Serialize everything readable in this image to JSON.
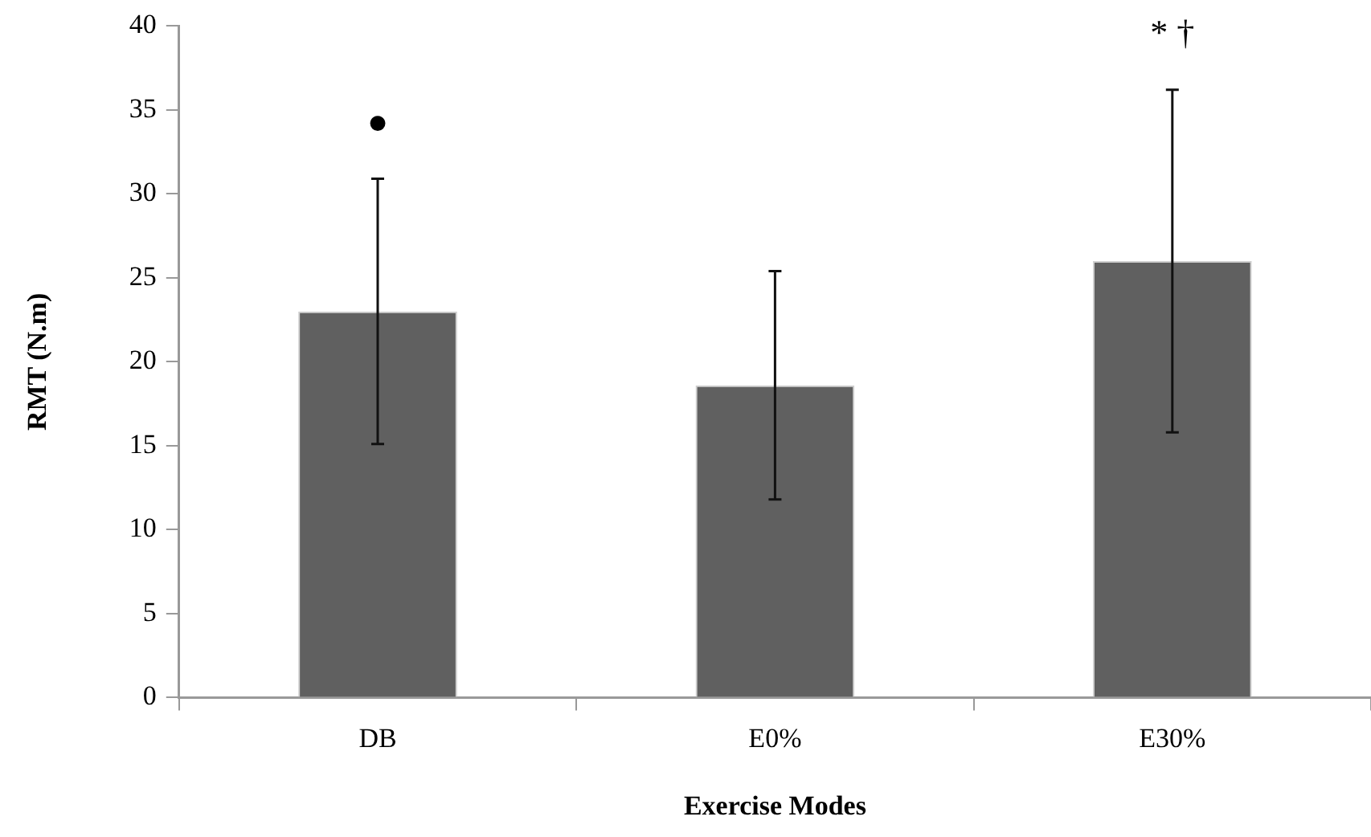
{
  "chart_data": {
    "type": "bar",
    "xlabel": "Exercise Modes",
    "ylabel": "RMT (N.m)",
    "categories": [
      "DB",
      "E0%",
      "E30%"
    ],
    "values": [
      23.0,
      18.6,
      26.0
    ],
    "errors": [
      7.9,
      6.8,
      10.2
    ],
    "color": "#606060",
    "ylim": [
      0,
      40
    ],
    "yticks": [
      0,
      5,
      10,
      15,
      20,
      25,
      30,
      35,
      40
    ],
    "grid": false,
    "legend": false,
    "annotations": [
      "●",
      "* †"
    ]
  }
}
